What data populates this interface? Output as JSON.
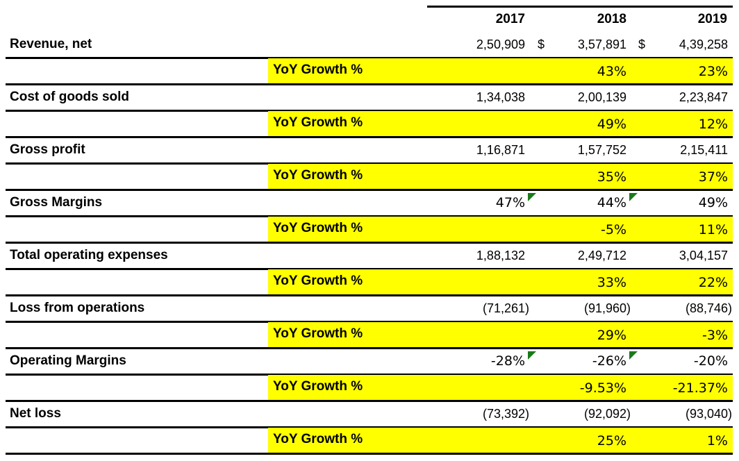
{
  "columns": [
    "2017",
    "2018",
    "2019"
  ],
  "currency_symbol": "$",
  "rows": [
    {
      "label": "Revenue, net",
      "values": [
        "2,50,909",
        "3,57,891",
        "4,39,258"
      ],
      "yoy_label": "YoY Growth %",
      "yoy": [
        "",
        "43%",
        "23%"
      ]
    },
    {
      "label": "Cost of goods sold",
      "values": [
        "1,34,038",
        "2,00,139",
        "2,23,847"
      ],
      "yoy_label": "YoY Growth %",
      "yoy": [
        "",
        "49%",
        "12%"
      ]
    },
    {
      "label": "Gross profit",
      "values": [
        "1,16,871",
        "1,57,752",
        "2,15,411"
      ],
      "yoy_label": "YoY Growth %",
      "yoy": [
        "",
        "35%",
        "37%"
      ]
    },
    {
      "label": "Gross Margins",
      "values": [
        "47%",
        "44%",
        "49%"
      ],
      "yoy_label": "YoY Growth %",
      "yoy": [
        "",
        "-5%",
        "11%"
      ]
    },
    {
      "label": "Total operating expenses",
      "values": [
        "1,88,132",
        "2,49,712",
        "3,04,157"
      ],
      "yoy_label": "YoY Growth %",
      "yoy": [
        "",
        "33%",
        "22%"
      ]
    },
    {
      "label": "Loss from operations",
      "values": [
        "(71,261)",
        "(91,960)",
        "(88,746)"
      ],
      "yoy_label": "YoY Growth %",
      "yoy": [
        "",
        "29%",
        "-3%"
      ]
    },
    {
      "label": "Operating Margins",
      "values": [
        "-28%",
        "-26%",
        "-20%"
      ],
      "yoy_label": "YoY Growth %",
      "yoy": [
        "",
        "-9.53%",
        "-21.37%"
      ]
    },
    {
      "label": "Net loss",
      "values": [
        "(73,392)",
        "(92,092)",
        "(93,040)"
      ],
      "yoy_label": "YoY Growth %",
      "yoy": [
        "",
        "25%",
        "1%"
      ]
    }
  ],
  "highlight_color": "#ffff00",
  "comment_flag_color": "#1a7a1a"
}
